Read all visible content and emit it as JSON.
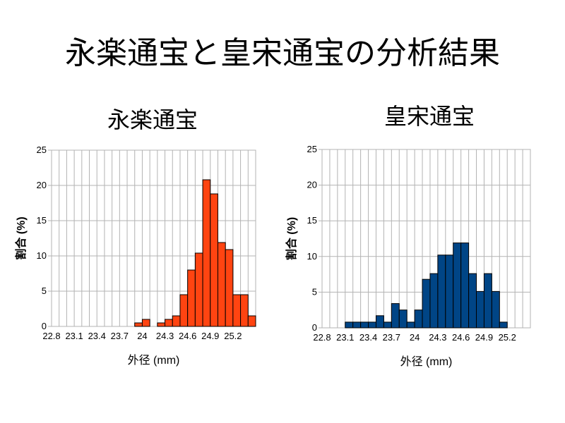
{
  "slide_title": "永楽通宝と皇宋通宝の分析結果",
  "chart_data": [
    {
      "type": "bar",
      "title": "永楽通宝",
      "xlabel": "外径 (mm)",
      "ylabel": "割合 (%)",
      "ylim": [
        0,
        25
      ],
      "yticks": [
        0,
        5,
        10,
        15,
        20,
        25
      ],
      "xlim": [
        22.8,
        25.5
      ],
      "bin_width": 0.1,
      "xtick_labels": [
        "22.8",
        "23.1",
        "23.4",
        "23.7",
        "24",
        "24.3",
        "24.6",
        "24.9",
        "25.2"
      ],
      "bar_color": "#ff4411",
      "grid": true,
      "bins": [
        {
          "x": 23.9,
          "value": 0.5
        },
        {
          "x": 24.0,
          "value": 1.0
        },
        {
          "x": 24.2,
          "value": 0.5
        },
        {
          "x": 24.3,
          "value": 1.0
        },
        {
          "x": 24.4,
          "value": 1.5
        },
        {
          "x": 24.5,
          "value": 4.5
        },
        {
          "x": 24.6,
          "value": 8.0
        },
        {
          "x": 24.7,
          "value": 10.4
        },
        {
          "x": 24.8,
          "value": 20.8
        },
        {
          "x": 24.9,
          "value": 18.8
        },
        {
          "x": 25.0,
          "value": 11.9
        },
        {
          "x": 25.1,
          "value": 10.9
        },
        {
          "x": 25.2,
          "value": 4.5
        },
        {
          "x": 25.3,
          "value": 4.5
        },
        {
          "x": 25.4,
          "value": 1.5
        }
      ]
    },
    {
      "type": "bar",
      "title": "皇宋通宝",
      "xlabel": "外径 (mm)",
      "ylabel": "割合 (%)",
      "ylim": [
        0,
        25
      ],
      "yticks": [
        0,
        5,
        10,
        15,
        20,
        25
      ],
      "xlim": [
        22.8,
        25.5
      ],
      "bin_width": 0.1,
      "xtick_labels": [
        "22.8",
        "23.1",
        "23.4",
        "23.7",
        "24",
        "24.3",
        "24.6",
        "24.9",
        "25.2"
      ],
      "bar_color": "#004586",
      "grid": true,
      "bins": [
        {
          "x": 23.1,
          "value": 0.8
        },
        {
          "x": 23.2,
          "value": 0.8
        },
        {
          "x": 23.3,
          "value": 0.8
        },
        {
          "x": 23.4,
          "value": 0.8
        },
        {
          "x": 23.5,
          "value": 1.7
        },
        {
          "x": 23.6,
          "value": 0.8
        },
        {
          "x": 23.7,
          "value": 3.4
        },
        {
          "x": 23.8,
          "value": 2.5
        },
        {
          "x": 23.9,
          "value": 0.8
        },
        {
          "x": 24.0,
          "value": 2.5
        },
        {
          "x": 24.1,
          "value": 6.8
        },
        {
          "x": 24.2,
          "value": 7.6
        },
        {
          "x": 24.3,
          "value": 10.2
        },
        {
          "x": 24.4,
          "value": 10.2
        },
        {
          "x": 24.5,
          "value": 11.9
        },
        {
          "x": 24.6,
          "value": 11.9
        },
        {
          "x": 24.7,
          "value": 7.6
        },
        {
          "x": 24.8,
          "value": 5.1
        },
        {
          "x": 24.9,
          "value": 7.6
        },
        {
          "x": 25.0,
          "value": 5.1
        },
        {
          "x": 25.1,
          "value": 0.8
        }
      ]
    }
  ]
}
